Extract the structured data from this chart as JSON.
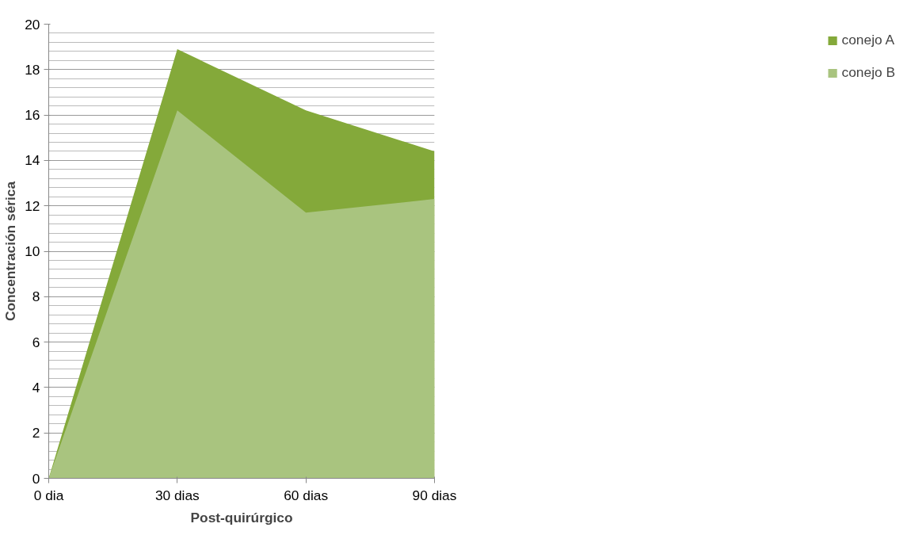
{
  "chart_data": {
    "type": "area",
    "xlabel": "Post-quirúrgico",
    "ylabel": "Concentración sérica",
    "categories": [
      "0 dia",
      "30 dias",
      "60 dias",
      "90 dias"
    ],
    "series": [
      {
        "name": "conejo A",
        "color": "#84a93a",
        "values": [
          0,
          18.9,
          16.2,
          14.4
        ]
      },
      {
        "name": "conejo B",
        "color": "#a9c47f",
        "values": [
          0,
          16.2,
          11.7,
          12.3
        ]
      }
    ],
    "ylim": [
      0,
      20
    ],
    "yticks": [
      0,
      2,
      4,
      6,
      8,
      10,
      12,
      14,
      16,
      18,
      20
    ],
    "grid": "y",
    "legend": "right"
  }
}
